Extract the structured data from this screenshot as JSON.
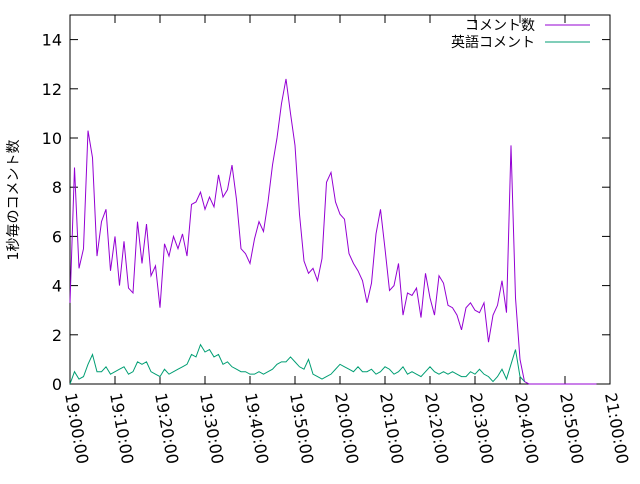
{
  "chart_data": {
    "type": "line",
    "ylabel": "1秒毎のコメント数",
    "ylim": [
      0,
      15
    ],
    "yticks": [
      0,
      2,
      4,
      6,
      8,
      10,
      12,
      14
    ],
    "xlim_minutes": [
      0,
      120
    ],
    "xtick_minutes": [
      0,
      10,
      20,
      30,
      40,
      50,
      60,
      70,
      80,
      90,
      100,
      110,
      120
    ],
    "xtick_labels": [
      "19:00:00",
      "19:10:00",
      "19:20:00",
      "19:30:00",
      "19:40:00",
      "19:50:00",
      "20:00:00",
      "20:10:00",
      "20:20:00",
      "20:30:00",
      "20:40:00",
      "20:50:00",
      "21:00:00"
    ],
    "legend_position": "top-right",
    "series": [
      {
        "name": "コメント数",
        "color": "#9400d3",
        "x_minutes": [
          0,
          1,
          2,
          3,
          4,
          5,
          6,
          7,
          8,
          9,
          10,
          11,
          12,
          13,
          14,
          15,
          16,
          17,
          18,
          19,
          20,
          21,
          22,
          23,
          24,
          25,
          26,
          27,
          28,
          29,
          30,
          31,
          32,
          33,
          34,
          35,
          36,
          37,
          38,
          39,
          40,
          41,
          42,
          43,
          44,
          45,
          46,
          47,
          48,
          49,
          50,
          51,
          52,
          53,
          54,
          55,
          56,
          57,
          58,
          59,
          60,
          61,
          62,
          63,
          64,
          65,
          66,
          67,
          68,
          69,
          70,
          71,
          72,
          73,
          74,
          75,
          76,
          77,
          78,
          79,
          80,
          81,
          82,
          83,
          84,
          85,
          86,
          87,
          88,
          89,
          90,
          91,
          92,
          93,
          94,
          95,
          96,
          97,
          98,
          99,
          100,
          101,
          102,
          103,
          104,
          105,
          106,
          107,
          108,
          109,
          110,
          111,
          112,
          113,
          114,
          115,
          116,
          117
        ],
        "values": [
          3.3,
          8.8,
          4.7,
          5.5,
          10.3,
          9.2,
          5.2,
          6.6,
          7.1,
          4.6,
          6.0,
          4.0,
          5.8,
          3.9,
          3.7,
          6.6,
          4.9,
          6.5,
          4.4,
          4.8,
          3.1,
          5.7,
          5.2,
          6.0,
          5.5,
          6.1,
          5.2,
          7.3,
          7.4,
          7.8,
          7.1,
          7.6,
          7.2,
          8.5,
          7.6,
          7.9,
          8.9,
          7.5,
          5.5,
          5.3,
          4.9,
          5.9,
          6.6,
          6.2,
          7.4,
          8.9,
          10.0,
          11.4,
          12.4,
          11.0,
          9.7,
          6.9,
          5.0,
          4.5,
          4.7,
          4.2,
          5.1,
          8.2,
          8.6,
          7.4,
          6.9,
          6.7,
          5.3,
          4.9,
          4.6,
          4.2,
          3.3,
          4.1,
          6.1,
          7.1,
          5.5,
          3.8,
          4.0,
          4.9,
          2.8,
          3.7,
          3.6,
          3.9,
          2.7,
          4.5,
          3.5,
          2.8,
          4.4,
          4.1,
          3.2,
          3.1,
          2.8,
          2.2,
          3.1,
          3.3,
          3.0,
          2.9,
          3.3,
          1.7,
          2.8,
          3.2,
          4.2,
          2.9,
          9.7,
          3.5,
          1.0,
          0.1,
          0.0,
          0.0,
          0.0,
          0.0,
          0.0,
          0.0,
          0.0,
          0.0,
          0.0,
          0.0,
          0.0,
          0.0,
          0.0,
          0.0,
          0.0,
          0.0
        ]
      },
      {
        "name": "英語コメント",
        "color": "#009e73",
        "x_minutes": [
          0,
          1,
          2,
          3,
          4,
          5,
          6,
          7,
          8,
          9,
          10,
          11,
          12,
          13,
          14,
          15,
          16,
          17,
          18,
          19,
          20,
          21,
          22,
          23,
          24,
          25,
          26,
          27,
          28,
          29,
          30,
          31,
          32,
          33,
          34,
          35,
          36,
          37,
          38,
          39,
          40,
          41,
          42,
          43,
          44,
          45,
          46,
          47,
          48,
          49,
          50,
          51,
          52,
          53,
          54,
          55,
          56,
          57,
          58,
          59,
          60,
          61,
          62,
          63,
          64,
          65,
          66,
          67,
          68,
          69,
          70,
          71,
          72,
          73,
          74,
          75,
          76,
          77,
          78,
          79,
          80,
          81,
          82,
          83,
          84,
          85,
          86,
          87,
          88,
          89,
          90,
          91,
          92,
          93,
          94,
          95,
          96,
          97,
          98,
          99,
          100,
          101
        ],
        "values": [
          0.0,
          0.5,
          0.2,
          0.3,
          0.8,
          1.2,
          0.5,
          0.5,
          0.7,
          0.4,
          0.5,
          0.6,
          0.7,
          0.4,
          0.5,
          0.9,
          0.8,
          0.9,
          0.5,
          0.4,
          0.3,
          0.6,
          0.4,
          0.5,
          0.6,
          0.7,
          0.8,
          1.2,
          1.1,
          1.6,
          1.3,
          1.4,
          1.1,
          1.2,
          0.8,
          0.9,
          0.7,
          0.6,
          0.5,
          0.5,
          0.4,
          0.4,
          0.5,
          0.4,
          0.5,
          0.6,
          0.8,
          0.9,
          0.9,
          1.1,
          0.9,
          0.7,
          0.6,
          1.0,
          0.4,
          0.3,
          0.2,
          0.3,
          0.4,
          0.6,
          0.8,
          0.7,
          0.6,
          0.5,
          0.7,
          0.5,
          0.5,
          0.6,
          0.4,
          0.5,
          0.7,
          0.6,
          0.4,
          0.5,
          0.7,
          0.4,
          0.5,
          0.4,
          0.3,
          0.5,
          0.7,
          0.5,
          0.4,
          0.5,
          0.4,
          0.5,
          0.4,
          0.3,
          0.3,
          0.5,
          0.4,
          0.6,
          0.4,
          0.3,
          0.1,
          0.3,
          0.6,
          0.2,
          0.8,
          1.4,
          0.3,
          0.1
        ]
      }
    ]
  }
}
